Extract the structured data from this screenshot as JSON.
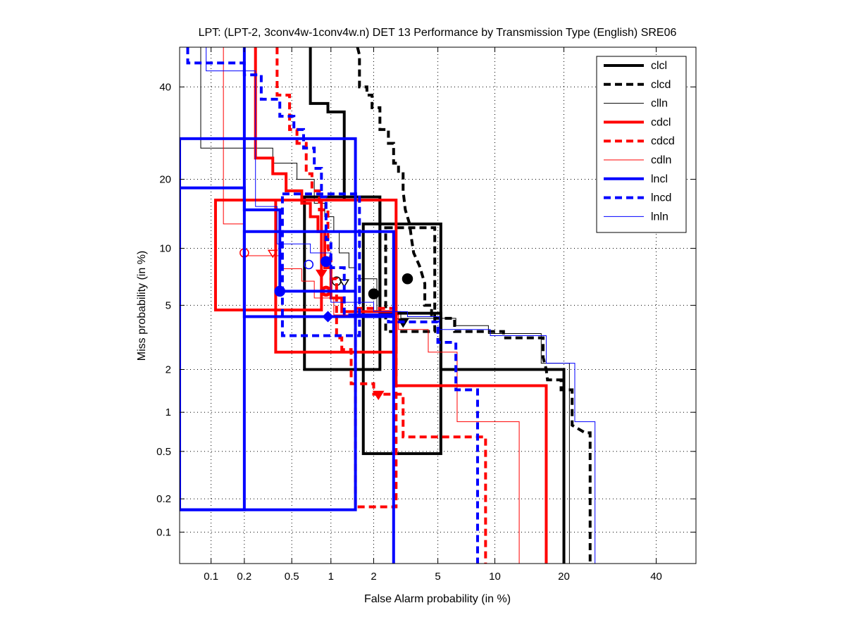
{
  "chart_data": {
    "type": "line",
    "title": "LPT: (LPT-2, 3conv4w-1conv4w.n) DET 13 Performance by Transmission Type (English) SRE06",
    "xlabel": "False Alarm probability (in %)",
    "ylabel": "Miss probability (in %)",
    "xscale": "probit",
    "yscale": "probit",
    "xlim": [
      0.05,
      50
    ],
    "ylim": [
      0.05,
      50
    ],
    "grid": true,
    "legend_position": "top-right",
    "xticks": [
      0.1,
      0.2,
      0.5,
      1,
      2,
      5,
      10,
      20,
      40
    ],
    "xtick_labels": [
      "0.1",
      "0.2",
      "0.5",
      "1",
      "2",
      "5",
      "10",
      "20",
      "40"
    ],
    "yticks": [
      0.1,
      0.2,
      0.5,
      1,
      2,
      5,
      10,
      20,
      40
    ],
    "ytick_labels": [
      "0.1",
      "0.2",
      "0.5",
      "1",
      "2",
      "5",
      "10",
      "20",
      "40"
    ],
    "series": [
      {
        "name": "clcl",
        "color": "#000000",
        "style": "solid",
        "weight": "thick",
        "curve": [
          [
            0.7,
            50
          ],
          [
            0.7,
            36
          ],
          [
            0.95,
            36
          ],
          [
            0.95,
            34
          ],
          [
            1.25,
            34
          ],
          [
            1.25,
            16.5
          ],
          [
            2.2,
            16.5
          ],
          [
            2.2,
            4.5
          ],
          [
            5.2,
            4.5
          ],
          [
            5.2,
            2
          ],
          [
            20,
            2
          ],
          [
            20,
            0.05
          ]
        ],
        "box": {
          "fa": [
            0.63,
            2.2
          ],
          "miss": [
            2,
            17
          ]
        },
        "box2": {
          "fa": [
            1.7,
            5.2
          ],
          "miss": [
            0.48,
            13
          ]
        },
        "points": [
          {
            "fa": 2.0,
            "miss": 5.8,
            "marker": "dot"
          },
          {
            "fa": 3.1,
            "miss": 4.0,
            "marker": "triangle"
          }
        ]
      },
      {
        "name": "clcd",
        "color": "#000000",
        "style": "dashed",
        "weight": "thick",
        "curve": [
          [
            1.55,
            50
          ],
          [
            1.6,
            48
          ],
          [
            1.6,
            40
          ],
          [
            1.8,
            40
          ],
          [
            1.8,
            38
          ],
          [
            1.95,
            38
          ],
          [
            1.95,
            35
          ],
          [
            2.2,
            35
          ],
          [
            2.2,
            30
          ],
          [
            2.5,
            30
          ],
          [
            2.5,
            27
          ],
          [
            2.7,
            27
          ],
          [
            2.7,
            23
          ],
          [
            2.9,
            23
          ],
          [
            2.9,
            21
          ],
          [
            3.1,
            21
          ],
          [
            3.1,
            18
          ],
          [
            3.2,
            15
          ],
          [
            3.4,
            13
          ],
          [
            3.5,
            11
          ],
          [
            3.6,
            9.5
          ],
          [
            3.9,
            8.2
          ],
          [
            4.2,
            6.6
          ],
          [
            4.2,
            5
          ],
          [
            4.6,
            5
          ],
          [
            4.6,
            4.2
          ],
          [
            6.2,
            4.2
          ],
          [
            6.2,
            3.5
          ],
          [
            11,
            3.5
          ],
          [
            11,
            3.2
          ],
          [
            16.5,
            3.2
          ],
          [
            16.5,
            2.4
          ],
          [
            17,
            2
          ],
          [
            17.2,
            1.7
          ],
          [
            19.5,
            1.7
          ],
          [
            19.5,
            1.45
          ],
          [
            21.5,
            1.45
          ],
          [
            21.5,
            0.8
          ],
          [
            24,
            0.7
          ],
          [
            25,
            0.7
          ],
          [
            25,
            0.05
          ]
        ],
        "box": {
          "fa": [
            2.4,
            4.8
          ],
          "miss": [
            3.5,
            12.5
          ]
        },
        "points": [
          {
            "fa": 3.3,
            "miss": 7.0,
            "marker": "dot"
          }
        ]
      },
      {
        "name": "clln",
        "color": "#000000",
        "style": "solid",
        "weight": "thin",
        "curve": [
          [
            0.08,
            50
          ],
          [
            0.08,
            26
          ],
          [
            0.35,
            26
          ],
          [
            0.35,
            23
          ],
          [
            0.55,
            23
          ],
          [
            0.55,
            20
          ],
          [
            0.75,
            20
          ],
          [
            0.75,
            16
          ],
          [
            0.9,
            16
          ],
          [
            0.9,
            14
          ],
          [
            1.05,
            14
          ],
          [
            1.05,
            12
          ],
          [
            1.15,
            12
          ],
          [
            1.15,
            9.5
          ],
          [
            1.35,
            9.5
          ],
          [
            1.35,
            8
          ],
          [
            1.5,
            8
          ],
          [
            1.5,
            7
          ],
          [
            2.1,
            7
          ],
          [
            2.1,
            4.6
          ],
          [
            3.0,
            4.6
          ],
          [
            3.0,
            4.2
          ],
          [
            6.3,
            4.2
          ],
          [
            6.3,
            3.8
          ],
          [
            9.3,
            3.8
          ],
          [
            9.3,
            3.4
          ],
          [
            16.2,
            3.4
          ],
          [
            16.2,
            2.2
          ],
          [
            21,
            2.2
          ],
          [
            21,
            0.05
          ]
        ],
        "points": [
          {
            "fa": 1.1,
            "miss": 6.8,
            "marker": "circle-open"
          },
          {
            "fa": 1.25,
            "miss": 6.7,
            "marker": "triangle-open"
          }
        ]
      },
      {
        "name": "cdcl",
        "color": "#ff0000",
        "style": "solid",
        "weight": "thick",
        "curve": [
          [
            0.25,
            50
          ],
          [
            0.25,
            24
          ],
          [
            0.35,
            24
          ],
          [
            0.35,
            21
          ],
          [
            0.45,
            21
          ],
          [
            0.45,
            18
          ],
          [
            0.6,
            18
          ],
          [
            0.6,
            16
          ],
          [
            0.7,
            16
          ],
          [
            0.7,
            14
          ],
          [
            0.8,
            14
          ],
          [
            0.8,
            12
          ],
          [
            0.9,
            12
          ],
          [
            0.9,
            8
          ],
          [
            1.0,
            8
          ],
          [
            1.0,
            5.5
          ],
          [
            1.2,
            5.5
          ],
          [
            1.2,
            4.6
          ],
          [
            2.8,
            4.6
          ],
          [
            2.8,
            1.55
          ],
          [
            17,
            1.55
          ],
          [
            17,
            0.05
          ]
        ],
        "box": {
          "fa": [
            0.11,
            0.85
          ],
          "miss": [
            4.7,
            16.5
          ]
        },
        "box2": {
          "fa": [
            0.37,
            2.8
          ],
          "miss": [
            2.6,
            16.5
          ]
        },
        "points": [
          {
            "fa": 0.92,
            "miss": 6.0,
            "marker": "circle"
          },
          {
            "fa": 2.15,
            "miss": 1.35,
            "marker": "triangle"
          }
        ]
      },
      {
        "name": "cdcd",
        "color": "#ff0000",
        "style": "dashed",
        "weight": "thick",
        "curve": [
          [
            0.38,
            50
          ],
          [
            0.38,
            38
          ],
          [
            0.48,
            38
          ],
          [
            0.48,
            30
          ],
          [
            0.55,
            30
          ],
          [
            0.55,
            27
          ],
          [
            0.65,
            27
          ],
          [
            0.65,
            21
          ],
          [
            0.72,
            21
          ],
          [
            0.72,
            18
          ],
          [
            0.82,
            18
          ],
          [
            0.82,
            15
          ],
          [
            0.95,
            15
          ],
          [
            0.95,
            10
          ],
          [
            1.0,
            9
          ],
          [
            1.0,
            7
          ],
          [
            1.1,
            7
          ],
          [
            1.1,
            3.2
          ],
          [
            1.2,
            3.2
          ],
          [
            1.2,
            2.7
          ],
          [
            1.4,
            2.7
          ],
          [
            1.4,
            1.6
          ],
          [
            2.0,
            1.6
          ],
          [
            2.0,
            1.35
          ],
          [
            3.1,
            1.35
          ],
          [
            3.1,
            0.65
          ],
          [
            9.0,
            0.65
          ],
          [
            9.0,
            0.05
          ]
        ],
        "box": {
          "fa": [
            1.5,
            2.8
          ],
          "miss": [
            0.17,
            4.8
          ]
        },
        "points": [
          {
            "fa": 0.85,
            "miss": 7.5,
            "marker": "triangle"
          }
        ]
      },
      {
        "name": "cdln",
        "color": "#ff0000",
        "style": "solid",
        "weight": "thin",
        "curve": [
          [
            0.13,
            50
          ],
          [
            0.13,
            13
          ],
          [
            0.2,
            13
          ],
          [
            0.2,
            9.2
          ],
          [
            0.4,
            9.2
          ],
          [
            0.4,
            7.9
          ],
          [
            0.6,
            7.9
          ],
          [
            0.6,
            6.8
          ],
          [
            0.75,
            6.8
          ],
          [
            0.75,
            5.5
          ],
          [
            1.05,
            5.5
          ],
          [
            1.05,
            4.4
          ],
          [
            2.9,
            4.4
          ],
          [
            2.9,
            3.6
          ],
          [
            4.4,
            3.6
          ],
          [
            4.4,
            2.6
          ],
          [
            6.4,
            2.6
          ],
          [
            6.4,
            0.85
          ],
          [
            13,
            0.85
          ],
          [
            13,
            0.05
          ]
        ],
        "points": [
          {
            "fa": 0.2,
            "miss": 9.5,
            "marker": "circle-open"
          },
          {
            "fa": 0.35,
            "miss": 9.5,
            "marker": "triangle-open"
          }
        ]
      },
      {
        "name": "lncl",
        "color": "#0000ff",
        "style": "solid",
        "weight": "thick",
        "curve": [
          [
            0.2,
            50
          ],
          [
            0.2,
            15
          ],
          [
            0.4,
            15
          ],
          [
            0.4,
            6.0
          ],
          [
            1.5,
            6.0
          ],
          [
            1.5,
            4.4
          ],
          [
            2.7,
            4.4
          ],
          [
            2.7,
            0.05
          ]
        ],
        "box": {
          "fa": [
            0.05,
            1.5
          ],
          "miss": [
            0.16,
            28
          ]
        },
        "box2": {
          "fa": [
            0.05,
            0.2
          ],
          "miss": [
            0.16,
            18.5
          ]
        },
        "box3": {
          "fa": [
            0.2,
            2.7
          ],
          "miss": [
            4.3,
            12
          ]
        },
        "points": [
          {
            "fa": 0.4,
            "miss": 6.0,
            "marker": "dot"
          },
          {
            "fa": 0.92,
            "miss": 8.6,
            "marker": "dot"
          }
        ]
      },
      {
        "name": "lncd",
        "color": "#0000ff",
        "style": "dashed",
        "weight": "thick",
        "curve": [
          [
            0.06,
            50
          ],
          [
            0.06,
            46
          ],
          [
            0.2,
            46
          ],
          [
            0.2,
            43
          ],
          [
            0.28,
            43
          ],
          [
            0.28,
            37
          ],
          [
            0.4,
            37
          ],
          [
            0.4,
            33
          ],
          [
            0.52,
            33
          ],
          [
            0.52,
            30
          ],
          [
            0.62,
            30
          ],
          [
            0.62,
            26
          ],
          [
            0.75,
            26
          ],
          [
            0.75,
            22
          ],
          [
            0.85,
            22
          ],
          [
            0.85,
            17
          ],
          [
            0.92,
            17
          ],
          [
            0.92,
            11
          ],
          [
            1.0,
            11
          ],
          [
            1.0,
            8
          ],
          [
            1.25,
            8
          ],
          [
            1.25,
            4.4
          ],
          [
            2.5,
            4.4
          ],
          [
            2.5,
            4.0
          ],
          [
            5.0,
            4.0
          ],
          [
            5.0,
            3.0
          ],
          [
            6.3,
            3.0
          ],
          [
            6.3,
            1.45
          ],
          [
            8.2,
            1.45
          ],
          [
            8.2,
            0.05
          ]
        ],
        "box": {
          "fa": [
            0.42,
            1.6
          ],
          "miss": [
            3.3,
            17.5
          ]
        },
        "points": [
          {
            "fa": 0.95,
            "miss": 4.3,
            "marker": "diamond"
          }
        ]
      },
      {
        "name": "lnln",
        "color": "#0000ff",
        "style": "solid",
        "weight": "thin",
        "curve": [
          [
            0.09,
            50
          ],
          [
            0.09,
            44
          ],
          [
            0.25,
            44
          ],
          [
            0.25,
            15.5
          ],
          [
            0.38,
            15.5
          ],
          [
            0.38,
            10.5
          ],
          [
            0.7,
            10.5
          ],
          [
            0.7,
            9.5
          ],
          [
            1.0,
            9.5
          ],
          [
            1.0,
            5.2
          ],
          [
            2.0,
            5.2
          ],
          [
            2.0,
            4.6
          ],
          [
            3.3,
            4.6
          ],
          [
            3.3,
            4.3
          ],
          [
            5.1,
            4.3
          ],
          [
            5.1,
            3.6
          ],
          [
            9.5,
            3.6
          ],
          [
            9.5,
            3.3
          ],
          [
            17,
            3.3
          ],
          [
            17,
            2.2
          ],
          [
            22,
            2.2
          ],
          [
            22,
            0.85
          ],
          [
            26,
            0.85
          ],
          [
            26,
            0.05
          ]
        ],
        "points": [
          {
            "fa": 0.68,
            "miss": 8.3,
            "marker": "circle-open"
          }
        ]
      }
    ]
  }
}
